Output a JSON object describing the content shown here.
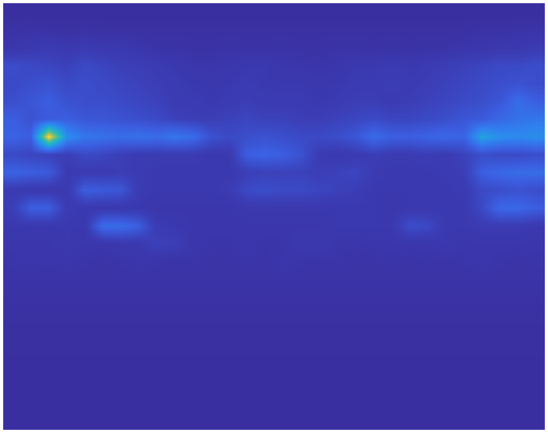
{
  "chart_data": {
    "type": "heatmap",
    "tick_labels": false,
    "zlim": [
      0,
      1
    ],
    "z": [
      [
        0.02,
        0.02,
        0.02,
        0.02,
        0.02,
        0.02,
        0.02,
        0.02,
        0.02,
        0.02,
        0.02,
        0.02,
        0.02,
        0.02,
        0.02,
        0.02,
        0.02,
        0.02,
        0.02,
        0.02,
        0.02,
        0.02,
        0.02,
        0.02,
        0.02,
        0.02,
        0.02,
        0.02,
        0.02,
        0.02
      ],
      [
        0.05,
        0.06,
        0.05,
        0.04,
        0.05,
        0.04,
        0.04,
        0.04,
        0.04,
        0.04,
        0.04,
        0.04,
        0.04,
        0.04,
        0.04,
        0.04,
        0.04,
        0.04,
        0.04,
        0.04,
        0.04,
        0.04,
        0.04,
        0.04,
        0.04,
        0.04,
        0.05,
        0.05,
        0.06,
        0.06
      ],
      [
        0.08,
        0.1,
        0.12,
        0.1,
        0.12,
        0.1,
        0.1,
        0.08,
        0.06,
        0.06,
        0.05,
        0.05,
        0.06,
        0.05,
        0.05,
        0.06,
        0.05,
        0.05,
        0.06,
        0.06,
        0.05,
        0.06,
        0.05,
        0.06,
        0.06,
        0.08,
        0.08,
        0.1,
        0.1,
        0.12
      ],
      [
        0.22,
        0.2,
        0.18,
        0.16,
        0.2,
        0.18,
        0.15,
        0.14,
        0.12,
        0.1,
        0.08,
        0.08,
        0.08,
        0.1,
        0.1,
        0.08,
        0.08,
        0.07,
        0.08,
        0.1,
        0.1,
        0.12,
        0.1,
        0.12,
        0.14,
        0.16,
        0.18,
        0.2,
        0.2,
        0.22
      ],
      [
        0.2,
        0.22,
        0.24,
        0.2,
        0.22,
        0.2,
        0.18,
        0.16,
        0.14,
        0.12,
        0.1,
        0.09,
        0.1,
        0.12,
        0.1,
        0.1,
        0.1,
        0.09,
        0.1,
        0.12,
        0.12,
        0.14,
        0.12,
        0.14,
        0.16,
        0.18,
        0.2,
        0.22,
        0.24,
        0.22
      ],
      [
        0.22,
        0.26,
        0.3,
        0.24,
        0.22,
        0.22,
        0.2,
        0.18,
        0.16,
        0.12,
        0.12,
        0.1,
        0.12,
        0.14,
        0.12,
        0.12,
        0.12,
        0.1,
        0.12,
        0.14,
        0.14,
        0.12,
        0.14,
        0.16,
        0.18,
        0.2,
        0.22,
        0.26,
        0.36,
        0.3
      ],
      [
        0.3,
        0.24,
        0.28,
        0.3,
        0.26,
        0.26,
        0.24,
        0.22,
        0.2,
        0.16,
        0.14,
        0.14,
        0.16,
        0.18,
        0.16,
        0.16,
        0.14,
        0.14,
        0.16,
        0.18,
        0.2,
        0.18,
        0.18,
        0.2,
        0.22,
        0.26,
        0.28,
        0.34,
        0.38,
        0.4
      ],
      [
        0.32,
        0.3,
        1.0,
        0.5,
        0.4,
        0.38,
        0.36,
        0.38,
        0.36,
        0.4,
        0.36,
        0.24,
        0.2,
        0.22,
        0.24,
        0.22,
        0.2,
        0.2,
        0.22,
        0.26,
        0.36,
        0.3,
        0.3,
        0.32,
        0.34,
        0.32,
        0.58,
        0.5,
        0.48,
        0.5
      ],
      [
        0.2,
        0.18,
        0.16,
        0.14,
        0.2,
        0.18,
        0.14,
        0.12,
        0.12,
        0.12,
        0.12,
        0.1,
        0.1,
        0.3,
        0.32,
        0.3,
        0.24,
        0.12,
        0.1,
        0.12,
        0.14,
        0.12,
        0.12,
        0.14,
        0.12,
        0.16,
        0.22,
        0.2,
        0.2,
        0.22
      ],
      [
        0.32,
        0.3,
        0.28,
        0.12,
        0.12,
        0.12,
        0.14,
        0.12,
        0.1,
        0.1,
        0.1,
        0.1,
        0.1,
        0.14,
        0.16,
        0.16,
        0.16,
        0.14,
        0.16,
        0.18,
        0.12,
        0.1,
        0.1,
        0.1,
        0.12,
        0.14,
        0.3,
        0.34,
        0.36,
        0.36
      ],
      [
        0.12,
        0.1,
        0.1,
        0.1,
        0.3,
        0.28,
        0.26,
        0.12,
        0.1,
        0.1,
        0.1,
        0.1,
        0.12,
        0.2,
        0.22,
        0.2,
        0.2,
        0.18,
        0.16,
        0.14,
        0.1,
        0.1,
        0.1,
        0.1,
        0.1,
        0.12,
        0.2,
        0.22,
        0.24,
        0.22
      ],
      [
        0.14,
        0.3,
        0.3,
        0.12,
        0.1,
        0.1,
        0.1,
        0.1,
        0.08,
        0.08,
        0.08,
        0.08,
        0.08,
        0.1,
        0.1,
        0.1,
        0.1,
        0.1,
        0.1,
        0.1,
        0.1,
        0.08,
        0.1,
        0.1,
        0.1,
        0.1,
        0.2,
        0.34,
        0.34,
        0.3
      ],
      [
        0.1,
        0.1,
        0.1,
        0.1,
        0.1,
        0.36,
        0.36,
        0.3,
        0.12,
        0.1,
        0.08,
        0.08,
        0.08,
        0.08,
        0.08,
        0.08,
        0.08,
        0.08,
        0.1,
        0.1,
        0.1,
        0.1,
        0.22,
        0.2,
        0.1,
        0.1,
        0.12,
        0.12,
        0.12,
        0.1
      ],
      [
        0.08,
        0.08,
        0.08,
        0.1,
        0.08,
        0.08,
        0.1,
        0.1,
        0.16,
        0.14,
        0.08,
        0.07,
        0.07,
        0.08,
        0.07,
        0.07,
        0.1,
        0.1,
        0.07,
        0.07,
        0.08,
        0.08,
        0.08,
        0.08,
        0.1,
        0.08,
        0.08,
        0.08,
        0.08,
        0.08
      ],
      [
        0.07,
        0.08,
        0.07,
        0.08,
        0.07,
        0.06,
        0.07,
        0.08,
        0.07,
        0.06,
        0.07,
        0.06,
        0.06,
        0.07,
        0.06,
        0.08,
        0.07,
        0.06,
        0.07,
        0.06,
        0.06,
        0.07,
        0.06,
        0.07,
        0.06,
        0.07,
        0.08,
        0.07,
        0.06,
        0.07
      ],
      [
        0.06,
        0.06,
        0.06,
        0.06,
        0.06,
        0.06,
        0.06,
        0.06,
        0.06,
        0.06,
        0.06,
        0.06,
        0.06,
        0.06,
        0.06,
        0.06,
        0.06,
        0.06,
        0.06,
        0.06,
        0.06,
        0.06,
        0.06,
        0.06,
        0.06,
        0.06,
        0.06,
        0.06,
        0.06,
        0.06
      ],
      [
        0.05,
        0.05,
        0.05,
        0.05,
        0.05,
        0.05,
        0.05,
        0.05,
        0.05,
        0.05,
        0.05,
        0.05,
        0.05,
        0.05,
        0.05,
        0.05,
        0.05,
        0.05,
        0.05,
        0.05,
        0.05,
        0.05,
        0.05,
        0.05,
        0.05,
        0.05,
        0.05,
        0.05,
        0.05,
        0.05
      ],
      [
        0.04,
        0.04,
        0.04,
        0.04,
        0.04,
        0.04,
        0.04,
        0.04,
        0.04,
        0.04,
        0.04,
        0.04,
        0.04,
        0.04,
        0.04,
        0.04,
        0.04,
        0.04,
        0.04,
        0.04,
        0.04,
        0.04,
        0.04,
        0.04,
        0.04,
        0.04,
        0.04,
        0.04,
        0.04,
        0.04
      ],
      [
        0.03,
        0.03,
        0.03,
        0.03,
        0.03,
        0.03,
        0.03,
        0.03,
        0.03,
        0.03,
        0.03,
        0.03,
        0.03,
        0.03,
        0.03,
        0.03,
        0.03,
        0.03,
        0.03,
        0.03,
        0.03,
        0.03,
        0.03,
        0.03,
        0.03,
        0.03,
        0.03,
        0.03,
        0.03,
        0.03
      ],
      [
        0.03,
        0.03,
        0.03,
        0.03,
        0.03,
        0.03,
        0.03,
        0.03,
        0.03,
        0.03,
        0.03,
        0.03,
        0.03,
        0.03,
        0.03,
        0.03,
        0.03,
        0.03,
        0.03,
        0.03,
        0.03,
        0.03,
        0.03,
        0.03,
        0.03,
        0.03,
        0.03,
        0.03,
        0.03,
        0.03
      ],
      [
        0.02,
        0.02,
        0.02,
        0.02,
        0.02,
        0.02,
        0.02,
        0.02,
        0.02,
        0.02,
        0.02,
        0.02,
        0.02,
        0.02,
        0.02,
        0.02,
        0.02,
        0.02,
        0.02,
        0.02,
        0.02,
        0.02,
        0.02,
        0.02,
        0.02,
        0.02,
        0.02,
        0.02,
        0.02,
        0.02
      ],
      [
        0.02,
        0.02,
        0.02,
        0.02,
        0.02,
        0.02,
        0.02,
        0.02,
        0.02,
        0.02,
        0.02,
        0.02,
        0.02,
        0.02,
        0.02,
        0.02,
        0.02,
        0.02,
        0.02,
        0.02,
        0.02,
        0.02,
        0.02,
        0.02,
        0.02,
        0.02,
        0.02,
        0.02,
        0.02,
        0.02
      ],
      [
        0.02,
        0.02,
        0.02,
        0.02,
        0.02,
        0.02,
        0.02,
        0.02,
        0.02,
        0.02,
        0.02,
        0.02,
        0.02,
        0.02,
        0.02,
        0.02,
        0.02,
        0.02,
        0.02,
        0.02,
        0.02,
        0.02,
        0.02,
        0.02,
        0.02,
        0.02,
        0.02,
        0.02,
        0.02,
        0.02
      ],
      [
        0.02,
        0.02,
        0.02,
        0.02,
        0.02,
        0.02,
        0.02,
        0.02,
        0.02,
        0.02,
        0.02,
        0.02,
        0.02,
        0.02,
        0.02,
        0.02,
        0.02,
        0.02,
        0.02,
        0.02,
        0.02,
        0.02,
        0.02,
        0.02,
        0.02,
        0.02,
        0.02,
        0.02,
        0.02,
        0.02
      ]
    ]
  }
}
